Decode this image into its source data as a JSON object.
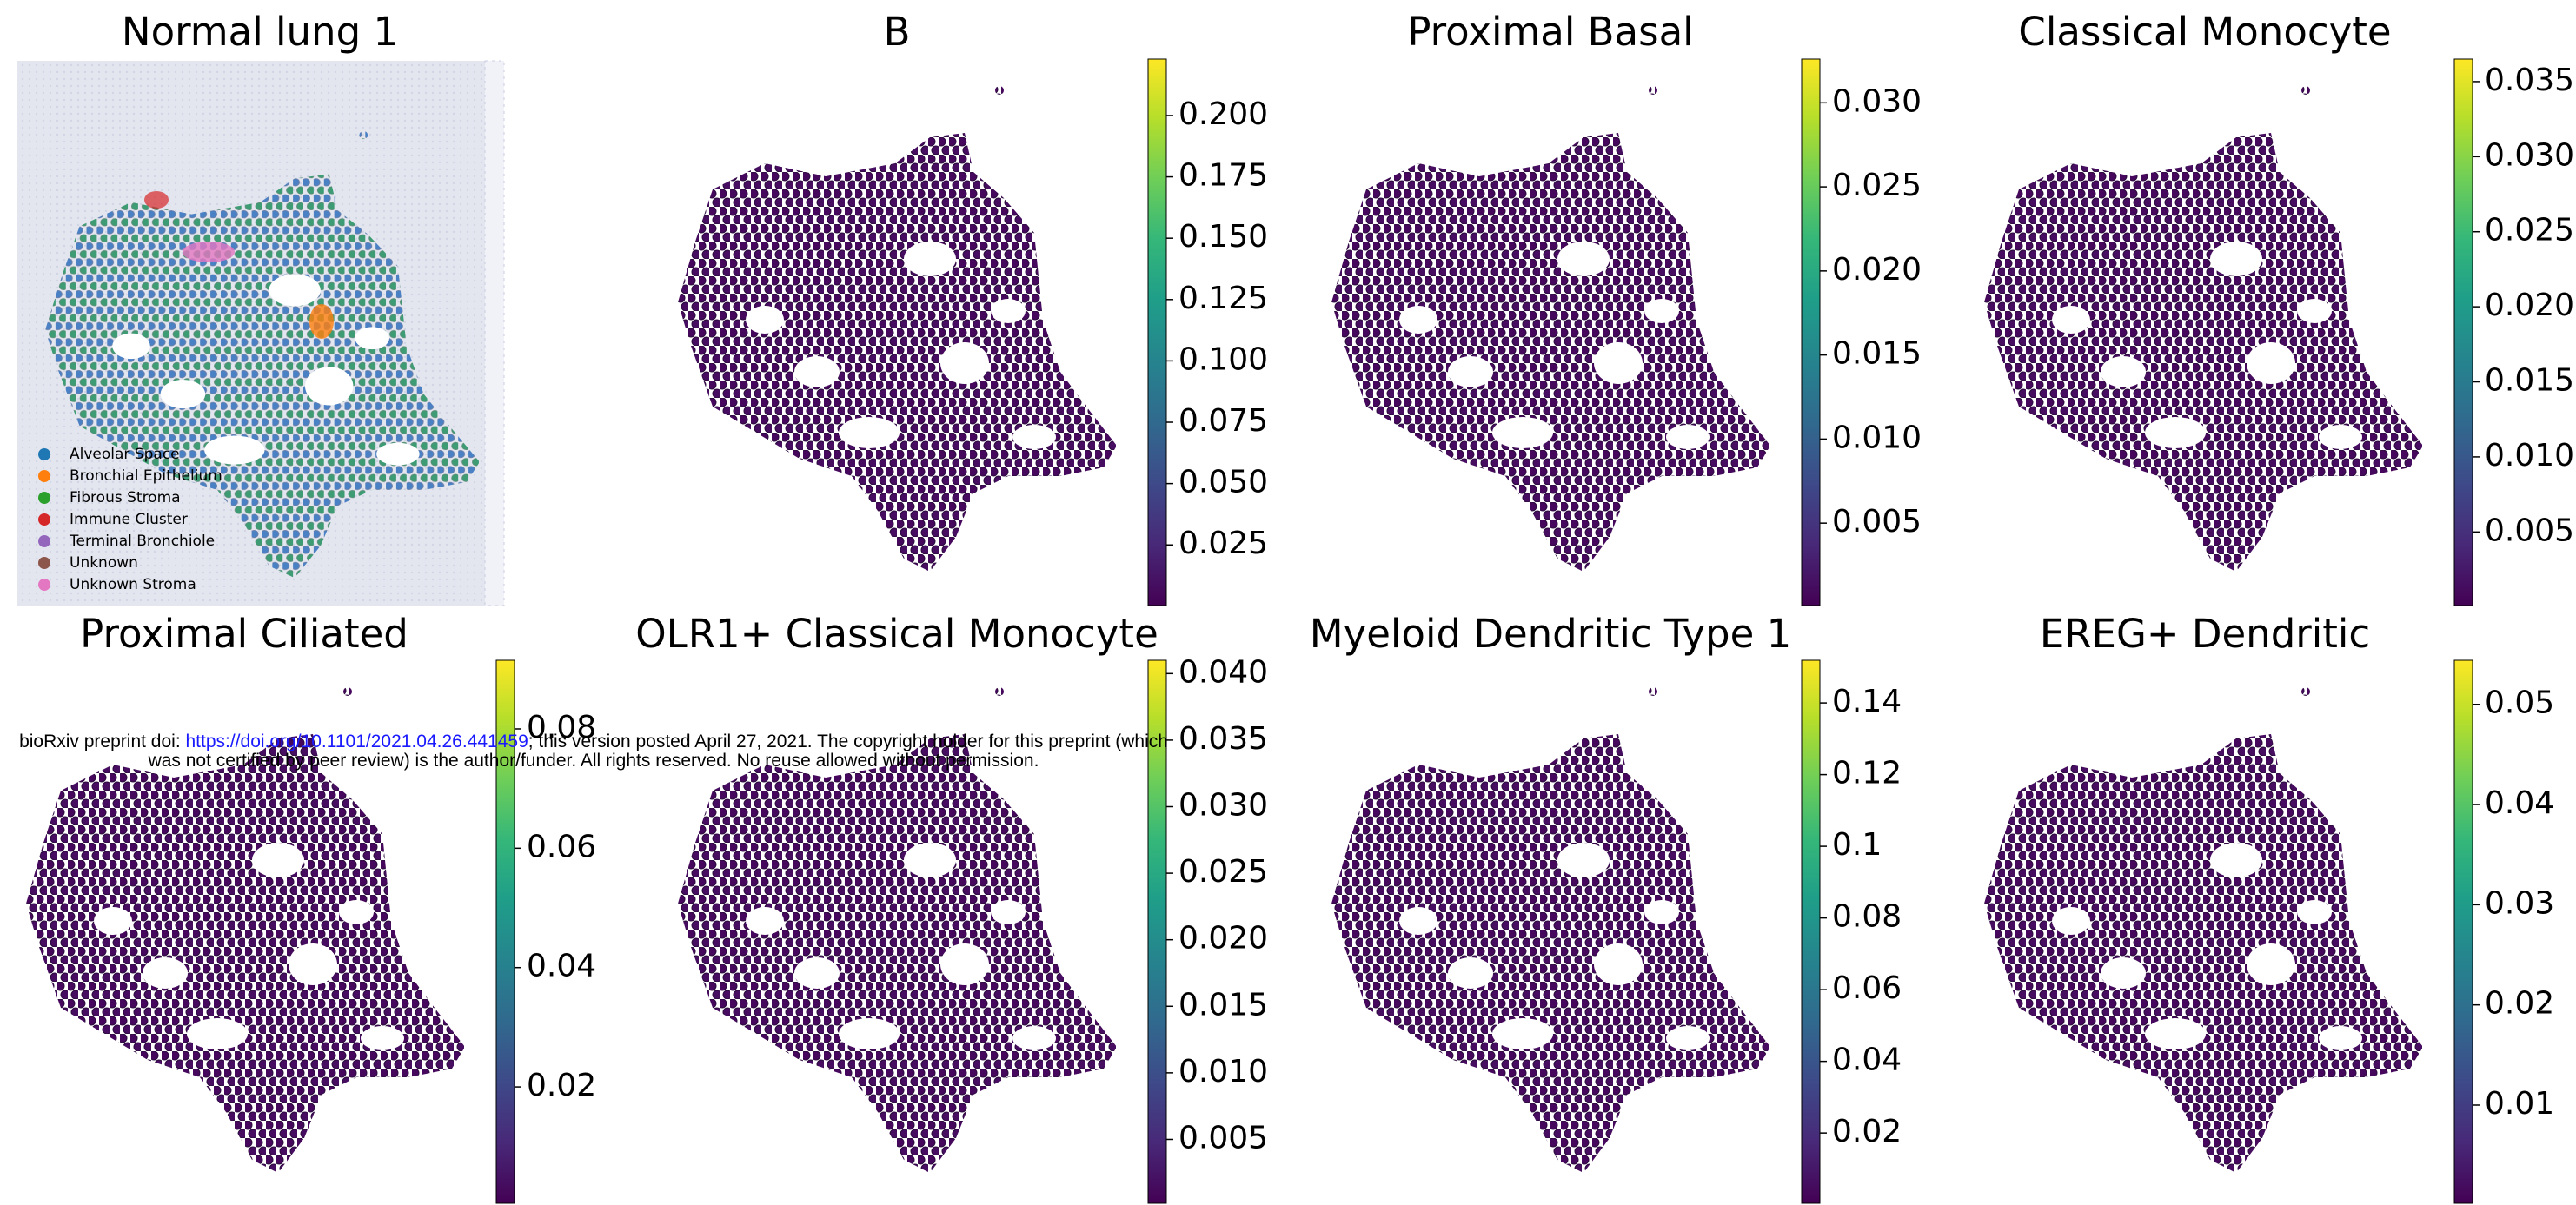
{
  "watermark": {
    "prefix": "bioRxiv preprint doi: ",
    "link": "https://doi.org/10.1101/2021.04.26.441459",
    "suffix": "; this version posted April 27, 2021. The copyright holder for this preprint (which",
    "line2": "was not certified by peer review) is the author/funder. All rights reserved. No reuse allowed without permission."
  },
  "chart_data": [
    {
      "type": "image",
      "title": "Normal lung 1",
      "legend": [
        {
          "name": "Alveolar Space",
          "color": "#1f77b4"
        },
        {
          "name": "Bronchial Epithelium",
          "color": "#ff7f0e"
        },
        {
          "name": "Fibrous Stroma",
          "color": "#2ca02c"
        },
        {
          "name": "Immune Cluster",
          "color": "#d62728"
        },
        {
          "name": "Terminal Bronchiole",
          "color": "#9467bd"
        },
        {
          "name": "Unknown",
          "color": "#8c564b"
        },
        {
          "name": "Unknown Stroma",
          "color": "#e377c2"
        }
      ]
    },
    {
      "type": "spatial",
      "title": "B",
      "ylim": [
        0.0003,
        0.223
      ],
      "yticks": [
        0.025,
        {
          "value": 0.05,
          "label": "0.050"
        },
        0.075,
        {
          "value": 0.1,
          "label": "0.100"
        },
        0.125,
        {
          "value": 0.15,
          "label": "0.150"
        },
        0.175,
        {
          "value": 0.2,
          "label": "0.200"
        }
      ]
    },
    {
      "type": "spatial",
      "title": "Proximal Basal",
      "ylim": [
        0.0001,
        0.0326
      ],
      "yticks": [
        0.005,
        {
          "value": 0.01,
          "label": "0.010"
        },
        0.015,
        {
          "value": 0.02,
          "label": "0.020"
        },
        0.025,
        {
          "value": 0.03,
          "label": "0.030"
        }
      ]
    },
    {
      "type": "spatial",
      "title": "Classical Monocyte",
      "ylim": [
        0.0001,
        0.0365
      ],
      "yticks": [
        0.005,
        {
          "value": 0.01,
          "label": "0.010"
        },
        0.015,
        {
          "value": 0.02,
          "label": "0.020"
        },
        0.025,
        {
          "value": 0.03,
          "label": "0.030"
        },
        0.035
      ]
    },
    {
      "type": "spatial",
      "title": "Proximal Ciliated",
      "ylim": [
        0.0005,
        0.0915
      ],
      "yticks": [
        0.02,
        0.04,
        0.06,
        0.08
      ]
    },
    {
      "type": "spatial",
      "title": "OLR1+ Classical Monocyte",
      "ylim": [
        0.0002,
        0.041
      ],
      "yticks": [
        0.005,
        {
          "value": 0.01,
          "label": "0.010"
        },
        0.015,
        {
          "value": 0.02,
          "label": "0.020"
        },
        0.025,
        {
          "value": 0.03,
          "label": "0.030"
        },
        0.035,
        {
          "value": 0.04,
          "label": "0.040"
        }
      ]
    },
    {
      "type": "spatial",
      "title": "Myeloid Dendritic Type 1",
      "ylim": [
        0.0004,
        0.1519
      ],
      "yticks": [
        0.02,
        0.04,
        0.06,
        0.08,
        0.1,
        0.12,
        0.14
      ]
    },
    {
      "type": "spatial",
      "title": "EREG+ Dendritic",
      "ylim": [
        0.0002,
        0.0544
      ],
      "yticks": [
        0.01,
        0.02,
        0.03,
        0.04,
        0.05
      ]
    }
  ]
}
